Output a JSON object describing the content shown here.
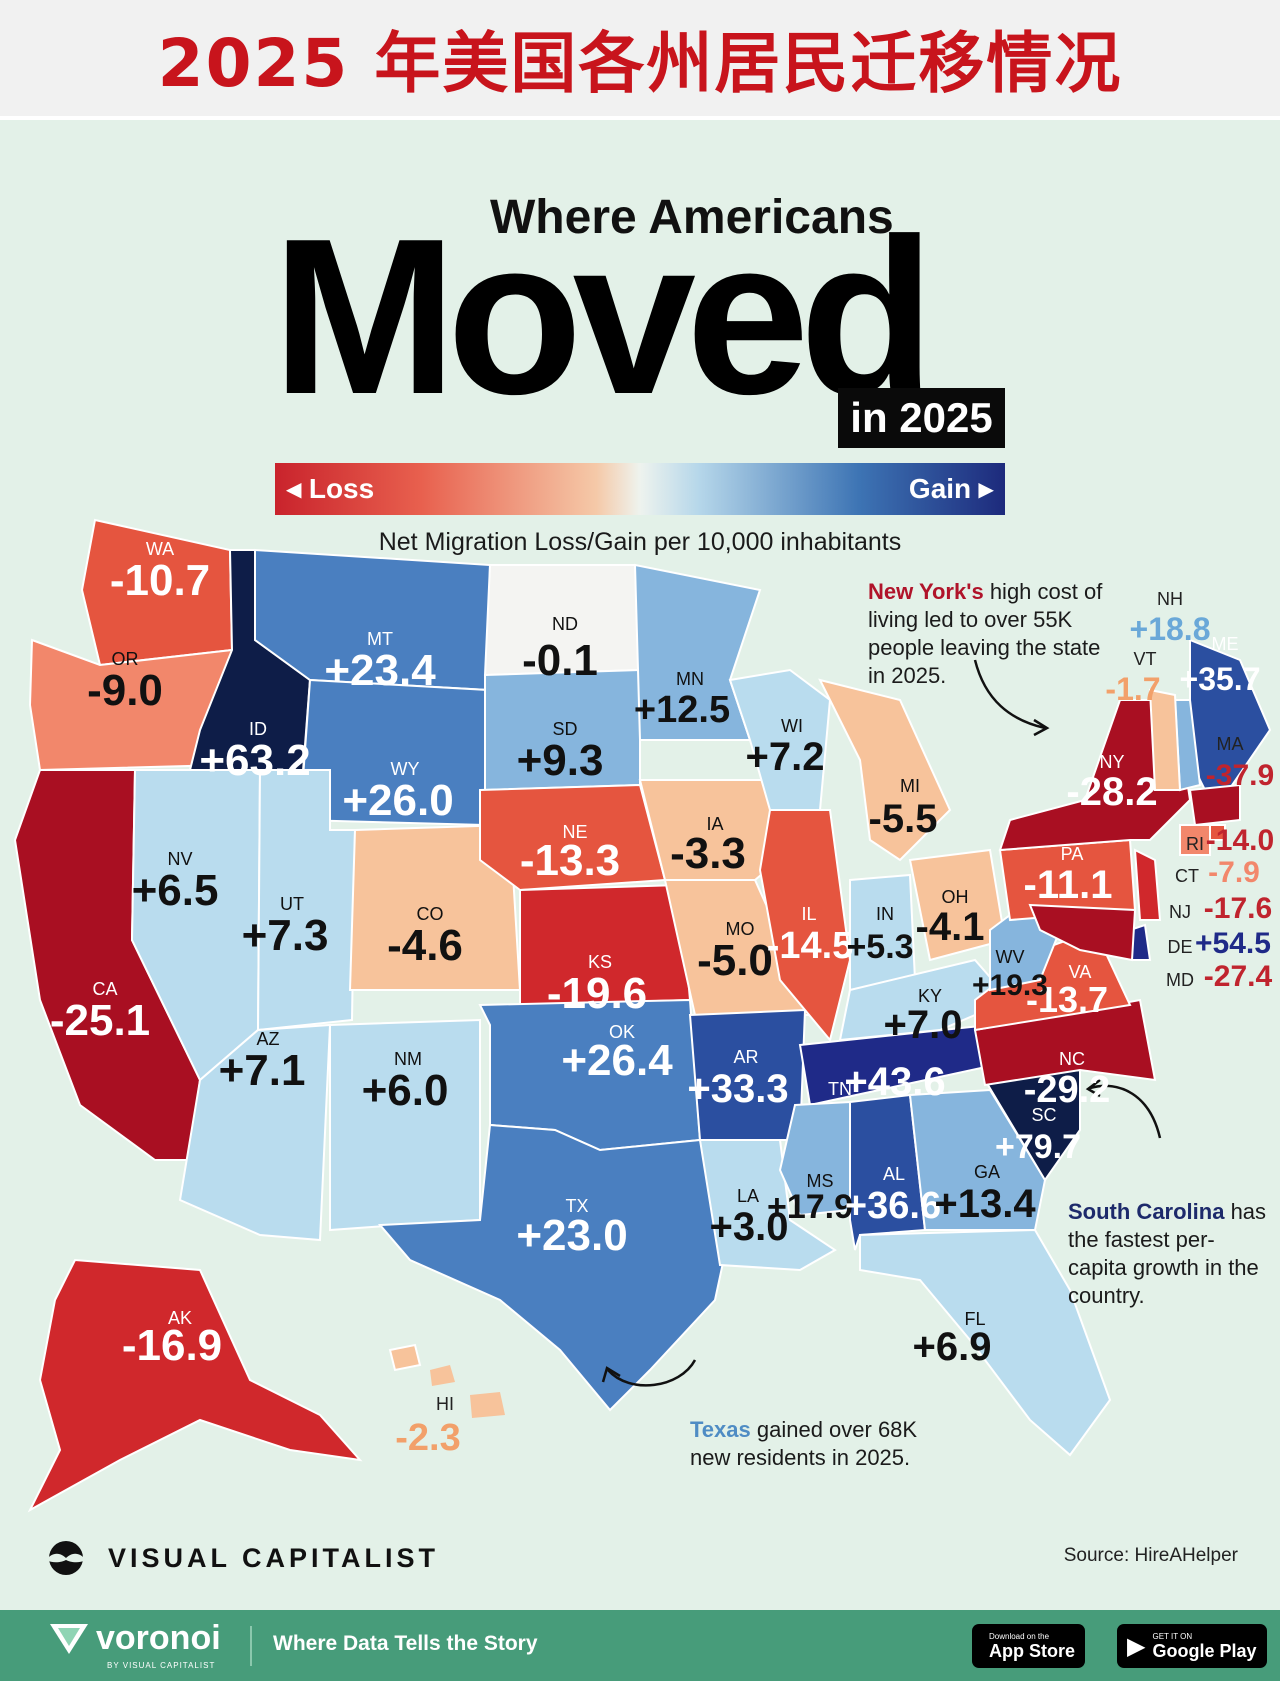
{
  "banner_title": "2025 年美国各州居民迁移情况",
  "headline": {
    "small": "Where Americans",
    "big": "Moved",
    "year": "in 2025"
  },
  "legend": {
    "loss": "◂ Loss",
    "gain": "Gain ▸",
    "loss_color": "#c9232c",
    "gain_color": "#1d2a7c"
  },
  "subtitle": "Net Migration Loss/Gain per 10,000 inhabitants",
  "states": [
    {
      "abbr": "WA",
      "value": "-10.7"
    },
    {
      "abbr": "OR",
      "value": "-9.0"
    },
    {
      "abbr": "CA",
      "value": "-25.1"
    },
    {
      "abbr": "ID",
      "value": "+63.2"
    },
    {
      "abbr": "NV",
      "value": "+6.5"
    },
    {
      "abbr": "MT",
      "value": "+23.4"
    },
    {
      "abbr": "WY",
      "value": "+26.0"
    },
    {
      "abbr": "UT",
      "value": "+7.3"
    },
    {
      "abbr": "AZ",
      "value": "+7.1"
    },
    {
      "abbr": "CO",
      "value": "-4.6"
    },
    {
      "abbr": "NM",
      "value": "+6.0"
    },
    {
      "abbr": "ND",
      "value": "-0.1"
    },
    {
      "abbr": "SD",
      "value": "+9.3"
    },
    {
      "abbr": "NE",
      "value": "-13.3"
    },
    {
      "abbr": "KS",
      "value": "-19.6"
    },
    {
      "abbr": "OK",
      "value": "+26.4"
    },
    {
      "abbr": "TX",
      "value": "+23.0"
    },
    {
      "abbr": "MN",
      "value": "+12.5"
    },
    {
      "abbr": "IA",
      "value": "-3.3"
    },
    {
      "abbr": "MO",
      "value": "-5.0"
    },
    {
      "abbr": "AR",
      "value": "+33.3"
    },
    {
      "abbr": "LA",
      "value": "+3.0"
    },
    {
      "abbr": "WI",
      "value": "+7.2"
    },
    {
      "abbr": "IL",
      "value": "-14.5"
    },
    {
      "abbr": "MI",
      "value": "-5.5"
    },
    {
      "abbr": "IN",
      "value": "+5.3"
    },
    {
      "abbr": "OH",
      "value": "-4.1"
    },
    {
      "abbr": "KY",
      "value": "+7.0"
    },
    {
      "abbr": "TN",
      "value": "+43.6"
    },
    {
      "abbr": "MS",
      "value": "+17.9"
    },
    {
      "abbr": "AL",
      "value": "+36.6"
    },
    {
      "abbr": "GA",
      "value": "+13.4"
    },
    {
      "abbr": "FL",
      "value": "+6.9"
    },
    {
      "abbr": "SC",
      "value": "+79.7"
    },
    {
      "abbr": "NC",
      "value": "-29.2"
    },
    {
      "abbr": "VA",
      "value": "-13.7"
    },
    {
      "abbr": "WV",
      "value": "+19.3"
    },
    {
      "abbr": "PA",
      "value": "-11.1"
    },
    {
      "abbr": "NY",
      "value": "-28.2"
    },
    {
      "abbr": "ME",
      "value": "+35.7"
    },
    {
      "abbr": "NH",
      "value": "+18.8"
    },
    {
      "abbr": "VT",
      "value": "-1.7"
    },
    {
      "abbr": "MA",
      "value": "-37.9"
    },
    {
      "abbr": "RI",
      "value": "-14.0"
    },
    {
      "abbr": "CT",
      "value": "-7.9"
    },
    {
      "abbr": "NJ",
      "value": "-17.6"
    },
    {
      "abbr": "DE",
      "value": "+54.5"
    },
    {
      "abbr": "MD",
      "value": "-27.4"
    },
    {
      "abbr": "AK",
      "value": "-16.9"
    },
    {
      "abbr": "HI",
      "value": "-2.3"
    }
  ],
  "callouts": {
    "ny": {
      "highlight": "New York's",
      "text": " high cost of living led to over 55K people leaving the state in 2025.",
      "color": "#b0142a"
    },
    "sc": {
      "highlight": "South Carolina",
      "text": " has the fastest per-capita growth in the country.",
      "color": "#1d2a6b"
    },
    "tx": {
      "highlight": "Texas",
      "text": " gained over 68K new residents in 2025.",
      "color": "#4f8cc4"
    }
  },
  "brand": {
    "name": "VISUAL CAPITALIST",
    "source": "Source: HireAHelper"
  },
  "footer": {
    "logo": "voronoi",
    "logo_sub": "BY VISUAL CAPITALIST",
    "tagline": "Where Data Tells the Story",
    "app_store_small": "Download on the",
    "app_store_big": "App Store",
    "google_small": "GET IT ON",
    "google_big": "Google Play",
    "bg_color": "#479c7a"
  }
}
